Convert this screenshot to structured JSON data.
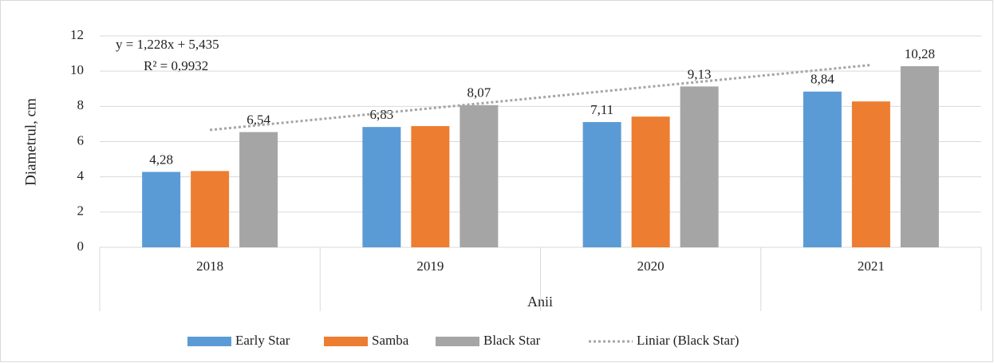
{
  "chart_data": {
    "type": "bar",
    "y_label": "Diametrul, cm",
    "x_label": "Anii",
    "categories": [
      "2018",
      "2019",
      "2020",
      "2021"
    ],
    "series": [
      {
        "name": "Early Star",
        "color": "#5b9bd5",
        "values": [
          4.28,
          6.83,
          7.11,
          8.84
        ],
        "value_labels": [
          "4,28",
          "6,83",
          "7,11",
          "8,84"
        ]
      },
      {
        "name": "Samba",
        "color": "#ed7d31",
        "values": [
          4.33,
          6.88,
          7.42,
          8.28
        ]
      },
      {
        "name": "Black Star",
        "color": "#a5a5a5",
        "values": [
          6.54,
          8.07,
          9.13,
          10.28
        ],
        "value_labels": [
          "6,54",
          "8,07",
          "9,13",
          "10,28"
        ]
      },
      {
        "name": "Liniar (Black Star)",
        "color": "#a5a5a5",
        "type": "trendline",
        "values": [
          6.66,
          7.89,
          9.12,
          10.35
        ]
      }
    ],
    "annotations": [
      "y = 1,228x + 5,435",
      "R² = 0,9932"
    ],
    "ylim": [
      0,
      12
    ],
    "yticks": [
      0,
      2,
      4,
      6,
      8,
      10,
      12
    ],
    "grid": true,
    "legend": "bottom"
  }
}
